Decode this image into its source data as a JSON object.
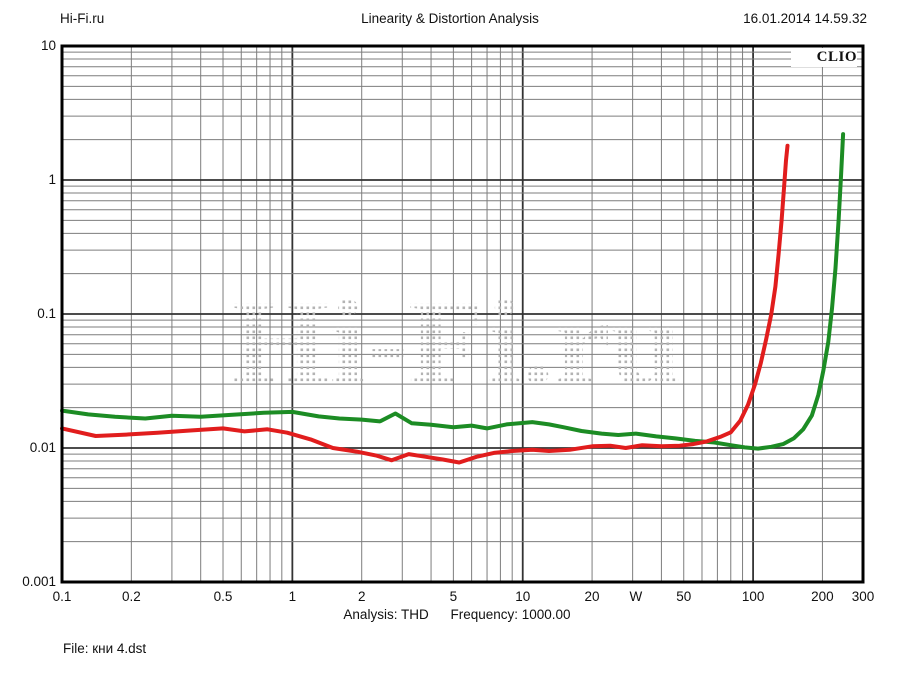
{
  "header": {
    "site": "Hi-Fi.ru",
    "title": "Linearity & Distortion Analysis",
    "timestamp": "16.01.2014 14.59.32"
  },
  "footer": {
    "analysis": "Analysis: THD",
    "frequency": "Frequency: 1000.00",
    "file": "File: кни 4.dst"
  },
  "chart_data": {
    "type": "line",
    "title": "Linearity & Distortion Analysis",
    "badge": "CLIO",
    "watermark": "Hi-Fi.ru",
    "xlabel": "W",
    "ylabel": "",
    "x_axis": {
      "scale": "log",
      "min": 0.1,
      "max": 300,
      "unit": "W",
      "ticks": [
        {
          "v": 0.1,
          "label": "0.1"
        },
        {
          "v": 0.2,
          "label": "0.2"
        },
        {
          "v": 0.5,
          "label": "0.5"
        },
        {
          "v": 1,
          "label": "1"
        },
        {
          "v": 2,
          "label": "2"
        },
        {
          "v": 5,
          "label": "5"
        },
        {
          "v": 10,
          "label": "10"
        },
        {
          "v": 20,
          "label": "20"
        },
        {
          "v": 31,
          "label": "W"
        },
        {
          "v": 50,
          "label": "50"
        },
        {
          "v": 100,
          "label": "100"
        },
        {
          "v": 200,
          "label": "200"
        },
        {
          "v": 300,
          "label": "300"
        }
      ]
    },
    "y_axis": {
      "scale": "log",
      "min": 0.001,
      "max": 10,
      "ticks": [
        {
          "v": 10,
          "label": "10"
        },
        {
          "v": 1,
          "label": "1"
        },
        {
          "v": 0.1,
          "label": "0.1"
        },
        {
          "v": 0.01,
          "label": "0.01"
        },
        {
          "v": 0.001,
          "label": "0.001"
        }
      ]
    },
    "grid": {
      "minor_color": "#7d7d7d",
      "major_color": "#333333",
      "border_color": "#000000"
    },
    "series": [
      {
        "name": "green",
        "color": "#1c8c24",
        "points": [
          [
            0.1,
            0.019
          ],
          [
            0.13,
            0.0178
          ],
          [
            0.17,
            0.0171
          ],
          [
            0.23,
            0.0166
          ],
          [
            0.3,
            0.0174
          ],
          [
            0.4,
            0.0171
          ],
          [
            0.55,
            0.0177
          ],
          [
            0.75,
            0.0183
          ],
          [
            1.0,
            0.0186
          ],
          [
            1.3,
            0.0172
          ],
          [
            1.6,
            0.0166
          ],
          [
            2.0,
            0.0163
          ],
          [
            2.4,
            0.0158
          ],
          [
            2.8,
            0.0181
          ],
          [
            3.3,
            0.0153
          ],
          [
            4.0,
            0.0149
          ],
          [
            5.0,
            0.0143
          ],
          [
            6.0,
            0.0147
          ],
          [
            7.0,
            0.014
          ],
          [
            8.5,
            0.015
          ],
          [
            11,
            0.0156
          ],
          [
            13,
            0.015
          ],
          [
            15,
            0.0143
          ],
          [
            18,
            0.0134
          ],
          [
            22,
            0.0128
          ],
          [
            26,
            0.0125
          ],
          [
            31,
            0.0128
          ],
          [
            38,
            0.0122
          ],
          [
            46,
            0.0118
          ],
          [
            56,
            0.0113
          ],
          [
            68,
            0.011
          ],
          [
            80,
            0.0105
          ],
          [
            92,
            0.0101
          ],
          [
            105,
            0.0099
          ],
          [
            120,
            0.0102
          ],
          [
            135,
            0.0107
          ],
          [
            150,
            0.0118
          ],
          [
            165,
            0.0138
          ],
          [
            180,
            0.0175
          ],
          [
            192,
            0.025
          ],
          [
            202,
            0.038
          ],
          [
            212,
            0.062
          ],
          [
            220,
            0.11
          ],
          [
            228,
            0.22
          ],
          [
            235,
            0.5
          ],
          [
            241,
            1.1
          ],
          [
            246,
            2.2
          ]
        ]
      },
      {
        "name": "red",
        "color": "#e11d1d",
        "points": [
          [
            0.1,
            0.014
          ],
          [
            0.14,
            0.0123
          ],
          [
            0.19,
            0.0126
          ],
          [
            0.26,
            0.013
          ],
          [
            0.36,
            0.0135
          ],
          [
            0.5,
            0.014
          ],
          [
            0.62,
            0.0133
          ],
          [
            0.78,
            0.0138
          ],
          [
            0.95,
            0.013
          ],
          [
            1.2,
            0.0116
          ],
          [
            1.5,
            0.01
          ],
          [
            1.9,
            0.0094
          ],
          [
            2.3,
            0.0088
          ],
          [
            2.7,
            0.0081
          ],
          [
            3.2,
            0.009
          ],
          [
            3.8,
            0.0086
          ],
          [
            4.5,
            0.0082
          ],
          [
            5.3,
            0.0078
          ],
          [
            6.3,
            0.0086
          ],
          [
            7.5,
            0.0092
          ],
          [
            9,
            0.0095
          ],
          [
            11,
            0.0097
          ],
          [
            13,
            0.0095
          ],
          [
            16,
            0.0097
          ],
          [
            20,
            0.0103
          ],
          [
            24,
            0.0104
          ],
          [
            28,
            0.01
          ],
          [
            33,
            0.0105
          ],
          [
            40,
            0.0103
          ],
          [
            48,
            0.0104
          ],
          [
            55,
            0.0107
          ],
          [
            63,
            0.0112
          ],
          [
            72,
            0.0121
          ],
          [
            80,
            0.0131
          ],
          [
            88,
            0.016
          ],
          [
            95,
            0.021
          ],
          [
            102,
            0.03
          ],
          [
            108,
            0.043
          ],
          [
            114,
            0.065
          ],
          [
            120,
            0.1
          ],
          [
            125,
            0.16
          ],
          [
            129,
            0.28
          ],
          [
            133,
            0.5
          ],
          [
            136,
            0.85
          ],
          [
            139,
            1.4
          ],
          [
            141,
            1.8
          ]
        ]
      }
    ]
  }
}
